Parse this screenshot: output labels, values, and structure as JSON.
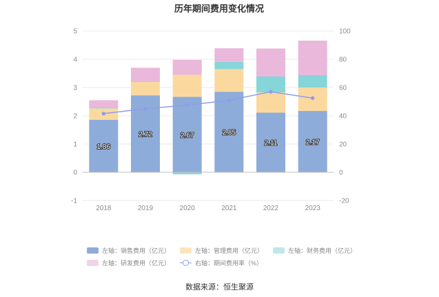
{
  "chart_data": {
    "type": "bar",
    "title": "历年期间费用变化情况",
    "categories": [
      "2018",
      "2019",
      "2020",
      "2021",
      "2022",
      "2023"
    ],
    "left_axis": {
      "ylim": [
        -1,
        5
      ],
      "ticks": [
        "-1",
        "0",
        "1",
        "2",
        "3",
        "4",
        "5"
      ]
    },
    "right_axis": {
      "ylim": [
        -20,
        100
      ],
      "ticks": [
        "-20",
        "0",
        "20",
        "40",
        "60",
        "80",
        "100"
      ]
    },
    "series": [
      {
        "name": "左轴：销售费用（亿元）",
        "kind": "bar",
        "axis": "left",
        "color": "#8eacd9",
        "values": [
          1.86,
          2.72,
          2.67,
          2.85,
          2.11,
          2.17
        ],
        "labels": [
          "1.86",
          "2.72",
          "2.67",
          "2.85",
          "2.11",
          "2.17"
        ]
      },
      {
        "name": "左轴：管理费用（亿元）",
        "kind": "bar",
        "axis": "left",
        "color": "#fbd99e",
        "values": [
          0.4,
          0.48,
          0.78,
          0.8,
          0.72,
          0.83
        ]
      },
      {
        "name": "左轴：财务费用（亿元）",
        "kind": "bar",
        "axis": "left",
        "color": "#86d5d9",
        "values": [
          0.02,
          0.02,
          -0.07,
          0.26,
          0.56,
          0.44
        ]
      },
      {
        "name": "左轴：研发费用（亿元）",
        "kind": "bar",
        "axis": "left",
        "color": "#e9b8db",
        "values": [
          0.27,
          0.48,
          0.53,
          0.48,
          0.99,
          1.22
        ]
      },
      {
        "name": "右轴：期间费用率（%）",
        "kind": "line",
        "axis": "right",
        "color": "#8e9cf0",
        "values": [
          41.5,
          45.0,
          47.5,
          51.0,
          57.0,
          52.5
        ]
      }
    ],
    "legend_position": "bottom",
    "grid": true
  },
  "source": "数据来源：恒生聚源"
}
